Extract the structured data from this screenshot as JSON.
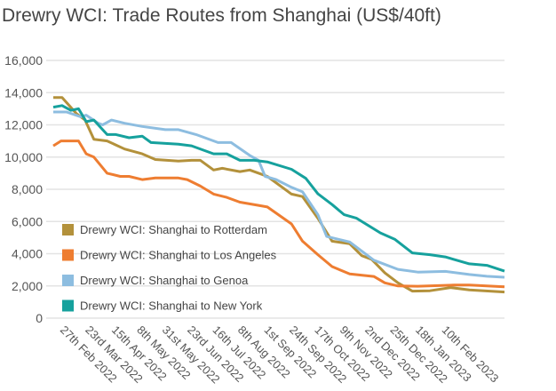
{
  "chart_data": {
    "type": "line",
    "title": "Drewry WCI: Trade Routes from Shanghai (US$/40ft)",
    "xlabel": "",
    "ylabel": "",
    "x_units": "days since 27th Feb 2022",
    "xlim": [
      -6,
      405
    ],
    "ylim": [
      0,
      16000
    ],
    "yticks": [
      0,
      2000,
      4000,
      6000,
      8000,
      10000,
      12000,
      14000,
      16000
    ],
    "ytick_labels": [
      "0",
      "2,000",
      "4,000",
      "6,000",
      "8,000",
      "10,000",
      "12,000",
      "14,000",
      "16,000"
    ],
    "xticks": [
      0,
      23,
      47,
      70,
      93,
      116,
      139,
      162,
      186,
      209,
      232,
      255,
      278,
      301,
      324,
      348
    ],
    "xtick_labels": [
      "27th Feb 2022",
      "23rd Mar 2022",
      "15th Apr 2022",
      "8th May 2022",
      "31st May 2022",
      "23rd Jun 2022",
      "16th Jul 2022",
      "8th Aug 2022",
      "1st Sep 2022",
      "24th Sep 2022",
      "17th Oct 2022",
      "9th Nov 2022",
      "2nd Dec 2022",
      "25th Dec 2022",
      "18th Jan 2023",
      "10th Feb 2023"
    ],
    "grid": true,
    "legend_position": "bottom-left inside",
    "series": [
      {
        "name": "Drewry WCI: Shanghai to Rotterdam",
        "color": "#b3913b",
        "x": [
          -6,
          2,
          15,
          23,
          31,
          43,
          59,
          75,
          87,
          108,
          120,
          128,
          140,
          148,
          164,
          173,
          185,
          189,
          211,
          221,
          235,
          248,
          264,
          275,
          284,
          296,
          308,
          321,
          337,
          356,
          373,
          405
        ],
        "y": [
          13700,
          13700,
          12700,
          12300,
          11100,
          11000,
          10500,
          10200,
          9850,
          9750,
          9800,
          9800,
          9200,
          9300,
          9100,
          9200,
          8900,
          8800,
          7700,
          7550,
          6200,
          4780,
          4620,
          3880,
          3650,
          2810,
          2190,
          1680,
          1700,
          1900,
          1750,
          1620
        ]
      },
      {
        "name": "Drewry WCI: Shanghai to Los Angeles",
        "color": "#ee7d31",
        "x": [
          -6,
          1,
          17,
          24,
          31,
          43,
          55,
          63,
          75,
          87,
          108,
          116,
          128,
          140,
          152,
          164,
          181,
          189,
          211,
          221,
          235,
          248,
          264,
          286,
          296,
          308,
          326,
          359,
          373,
          405
        ],
        "y": [
          10700,
          11000,
          11000,
          10200,
          10000,
          9000,
          8800,
          8800,
          8600,
          8700,
          8700,
          8600,
          8200,
          7700,
          7500,
          7200,
          7000,
          6900,
          5850,
          4780,
          3940,
          3200,
          2750,
          2590,
          2190,
          2000,
          1980,
          2050,
          2050,
          1950
        ]
      },
      {
        "name": "Drewry WCI: Shanghai to Genoa",
        "color": "#8dbde0",
        "x": [
          -6,
          6,
          19,
          24,
          35,
          39,
          47,
          59,
          75,
          96,
          108,
          124,
          144,
          156,
          173,
          181,
          187,
          197,
          211,
          221,
          235,
          243,
          264,
          275,
          286,
          308,
          326,
          351,
          373,
          389,
          405
        ],
        "y": [
          12800,
          12800,
          12500,
          12600,
          12100,
          12000,
          12300,
          12100,
          11900,
          11700,
          11700,
          11400,
          10900,
          10900,
          10100,
          9800,
          8800,
          8600,
          8120,
          7840,
          6420,
          5070,
          4730,
          4160,
          3600,
          3030,
          2860,
          2900,
          2710,
          2600,
          2540
        ],
        "note": "approximate"
      },
      {
        "name": "Drewry WCI: Shanghai to New York",
        "color": "#16a19d",
        "x": [
          -6,
          2,
          10,
          17,
          24,
          31,
          43,
          51,
          63,
          75,
          83,
          108,
          120,
          140,
          152,
          164,
          177,
          189,
          211,
          224,
          235,
          248,
          259,
          270,
          292,
          305,
          321,
          337,
          351,
          373,
          389,
          405
        ],
        "y": [
          13100,
          13200,
          12900,
          13000,
          12200,
          12300,
          11400,
          11400,
          11200,
          11300,
          10900,
          10800,
          10700,
          10200,
          10200,
          9800,
          9800,
          9700,
          9240,
          8680,
          7720,
          7050,
          6420,
          6210,
          5290,
          4900,
          4050,
          3940,
          3800,
          3370,
          3280,
          2920
        ]
      }
    ]
  }
}
